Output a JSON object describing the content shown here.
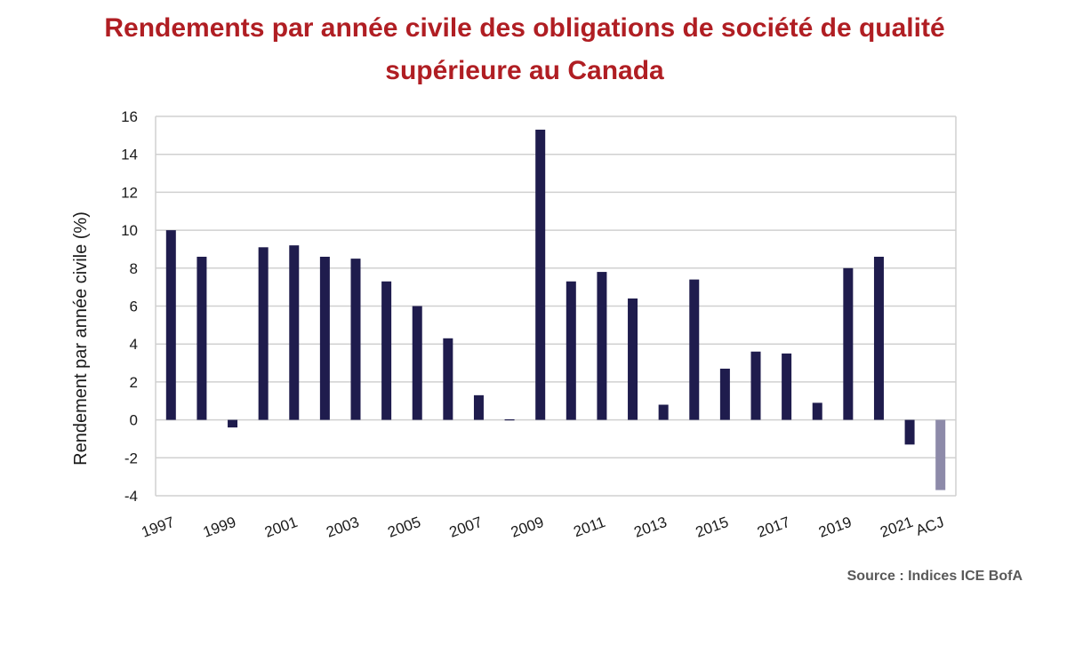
{
  "chart_data": {
    "type": "bar",
    "title": "Rendements par année civile des obligations de société de qualité supérieure au Canada",
    "ylabel": "Rendement par année civile (%)",
    "xlabel": "",
    "ylim": [
      -4,
      16
    ],
    "yticks": [
      -4,
      -2,
      0,
      2,
      4,
      6,
      8,
      10,
      12,
      14,
      16
    ],
    "grid": true,
    "categories": [
      "1997",
      "1998",
      "1999",
      "2000",
      "2001",
      "2002",
      "2003",
      "2004",
      "2005",
      "2006",
      "2007",
      "2008",
      "2009",
      "2010",
      "2011",
      "2012",
      "2013",
      "2014",
      "2015",
      "2016",
      "2017",
      "2018",
      "2019",
      "2020",
      "2021",
      "ACJ"
    ],
    "x_tick_labels": [
      "1997",
      "1999",
      "2001",
      "2003",
      "2005",
      "2007",
      "2009",
      "2011",
      "2013",
      "2015",
      "2017",
      "2019",
      "2021",
      "ACJ"
    ],
    "values": [
      10.0,
      8.6,
      -0.4,
      9.1,
      9.2,
      8.6,
      8.5,
      7.3,
      6.0,
      4.3,
      1.3,
      0.0,
      15.3,
      7.3,
      7.8,
      6.4,
      0.8,
      7.4,
      2.7,
      3.6,
      3.5,
      0.9,
      8.0,
      8.6,
      -1.3,
      -3.7
    ],
    "colors": {
      "bar": "#1f1c4d",
      "bar_highlight": "#8d8aa9",
      "title": "#b01e23",
      "grid": "#d0d0d0"
    }
  },
  "source": "Source : Indices ICE BofA"
}
